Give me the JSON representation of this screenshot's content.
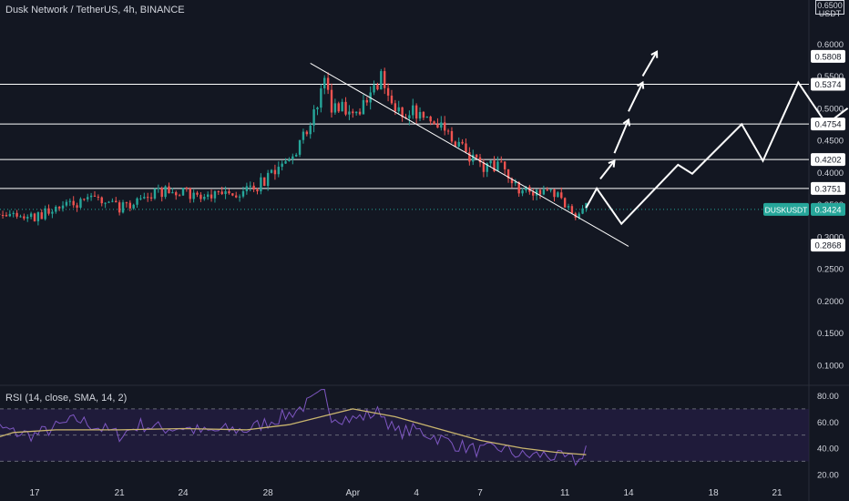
{
  "title": "Dusk Network / TetherUS, 4h, BINANCE",
  "rsi_title": "RSI (14, close, SMA, 14, 2)",
  "axis_unit": {
    "top": "0.6500",
    "bottom": "USDT"
  },
  "ticker_label": "DUSKUSDT",
  "colors": {
    "background": "#131722",
    "up": "#26a69a",
    "down": "#ef5350",
    "rsi_line": "#7e57c2",
    "rsi_ma": "#c9b56e",
    "rsi_band": "#2a1f4e",
    "annotation": "#ffffff",
    "axis_text": "#d1d4dc",
    "price_tag": "#26a69a"
  },
  "chart_data": [
    {
      "type": "candlestick",
      "title": "Dusk Network / TetherUS, 4h, BINANCE",
      "x_ticks": [
        "17",
        "21",
        "24",
        "28",
        "Apr",
        "4",
        "7",
        "11",
        "14",
        "18",
        "21"
      ],
      "y_ticks": [
        "0.6000",
        "0.5500",
        "0.5000",
        "0.4500",
        "0.4000",
        "0.3500",
        "0.3000",
        "0.2500",
        "0.2000",
        "0.1500",
        "0.1000"
      ],
      "ylim": [
        0.07,
        0.66
      ],
      "current_price": 0.3424,
      "horizontal_levels": [
        0.5374,
        0.4754,
        0.4202,
        0.3751
      ],
      "level_labels": [
        "0.5808",
        "0.5374",
        "0.4754",
        "0.4202",
        "0.3751",
        "0.3424",
        "0.2868"
      ],
      "trendline": {
        "from": [
          "2024-03-30",
          0.57
        ],
        "to": [
          "2024-04-14",
          0.285
        ]
      },
      "price_path": [
        [
          "2024-03-14 00:00",
          0.31
        ],
        [
          "2024-03-15 00:00",
          0.34
        ],
        [
          "2024-03-16 00:00",
          0.335
        ],
        [
          "2024-03-17 00:00",
          0.33
        ],
        [
          "2024-03-18 00:00",
          0.345
        ],
        [
          "2024-03-19 00:00",
          0.35
        ],
        [
          "2024-03-20 00:00",
          0.36
        ],
        [
          "2024-03-21 00:00",
          0.345
        ],
        [
          "2024-03-22 00:00",
          0.36
        ],
        [
          "2024-03-23 00:00",
          0.37
        ],
        [
          "2024-03-24 00:00",
          0.37
        ],
        [
          "2024-03-25 00:00",
          0.36
        ],
        [
          "2024-03-26 00:00",
          0.365
        ],
        [
          "2024-03-27 00:00",
          0.37
        ],
        [
          "2024-03-28 00:00",
          0.39
        ],
        [
          "2024-03-29 00:00",
          0.42
        ],
        [
          "2024-03-30 00:00",
          0.47
        ],
        [
          "2024-03-30 16:00",
          0.545
        ],
        [
          "2024-03-31 00:00",
          0.505
        ],
        [
          "2024-04-01 00:00",
          0.5
        ],
        [
          "2024-04-01 16:00",
          0.505
        ],
        [
          "2024-04-02 08:00",
          0.545
        ],
        [
          "2024-04-03 00:00",
          0.49
        ],
        [
          "2024-04-04 00:00",
          0.495
        ],
        [
          "2024-04-05 00:00",
          0.48
        ],
        [
          "2024-04-06 00:00",
          0.44
        ],
        [
          "2024-04-07 00:00",
          0.41
        ],
        [
          "2024-04-08 00:00",
          0.41
        ],
        [
          "2024-04-09 00:00",
          0.37
        ],
        [
          "2024-04-10 00:00",
          0.365
        ],
        [
          "2024-04-10 16:00",
          0.37
        ],
        [
          "2024-04-11 08:00",
          0.33
        ],
        [
          "2024-04-12 00:00",
          0.345
        ]
      ],
      "projection": [
        [
          "2024-04-12 00:00",
          0.345
        ],
        [
          "2024-04-12 12:00",
          0.375
        ],
        [
          "2024-04-13 16:00",
          0.32
        ],
        [
          "2024-04-16 08:00",
          0.412
        ],
        [
          "2024-04-17 00:00",
          0.398
        ],
        [
          "2024-04-19 08:00",
          0.475
        ],
        [
          "2024-04-20 08:00",
          0.418
        ],
        [
          "2024-04-22 00:00",
          0.54
        ],
        [
          "2024-04-23 08:00",
          0.475
        ],
        [
          "2024-04-24 08:00",
          0.5
        ]
      ],
      "breakout_arrows": [
        [
          [
            "2024-04-12 16:00",
            0.39
          ],
          [
            "2024-04-13 08:00",
            0.418
          ]
        ],
        [
          [
            "2024-04-13 08:00",
            0.43
          ],
          [
            "2024-04-14 00:00",
            0.482
          ]
        ],
        [
          [
            "2024-04-14 00:00",
            0.495
          ],
          [
            "2024-04-14 16:00",
            0.54
          ]
        ],
        [
          [
            "2024-04-14 16:00",
            0.55
          ],
          [
            "2024-04-15 08:00",
            0.588
          ]
        ]
      ]
    },
    {
      "type": "line",
      "title": "RSI (14, close, SMA, 14, 2)",
      "y_ticks": [
        "80.00",
        "60.00",
        "40.00",
        "20.00"
      ],
      "ylim": [
        15,
        88
      ],
      "band": [
        30,
        70
      ],
      "midline": 50,
      "series": [
        {
          "name": "RSI",
          "points": [
            [
              "2024-03-14 00:00",
              40
            ],
            [
              "2024-03-15 00:00",
              58
            ],
            [
              "2024-03-16 00:00",
              52
            ],
            [
              "2024-03-17 00:00",
              50
            ],
            [
              "2024-03-18 00:00",
              56
            ],
            [
              "2024-03-19 00:00",
              62
            ],
            [
              "2024-03-20 00:00",
              56
            ],
            [
              "2024-03-21 00:00",
              50
            ],
            [
              "2024-03-22 00:00",
              58
            ],
            [
              "2024-03-23 00:00",
              55
            ],
            [
              "2024-03-24 00:00",
              56
            ],
            [
              "2024-03-25 00:00",
              52
            ],
            [
              "2024-03-26 00:00",
              54
            ],
            [
              "2024-03-27 00:00",
              54
            ],
            [
              "2024-03-28 00:00",
              60
            ],
            [
              "2024-03-29 00:00",
              66
            ],
            [
              "2024-03-30 00:00",
              75
            ],
            [
              "2024-03-30 16:00",
              82
            ],
            [
              "2024-03-31 00:00",
              65
            ],
            [
              "2024-04-01 00:00",
              62
            ],
            [
              "2024-04-02 08:00",
              68
            ],
            [
              "2024-04-03 00:00",
              52
            ],
            [
              "2024-04-04 00:00",
              54
            ],
            [
              "2024-04-05 00:00",
              48
            ],
            [
              "2024-04-06 00:00",
              42
            ],
            [
              "2024-04-07 00:00",
              38
            ],
            [
              "2024-04-08 00:00",
              40
            ],
            [
              "2024-04-09 00:00",
              34
            ],
            [
              "2024-04-10 00:00",
              35
            ],
            [
              "2024-04-11 00:00",
              32
            ],
            [
              "2024-04-11 16:00",
              30
            ],
            [
              "2024-04-12 00:00",
              42
            ]
          ]
        },
        {
          "name": "RSI-based MA",
          "points": [
            [
              "2024-03-14 00:00",
              42
            ],
            [
              "2024-03-16 00:00",
              52
            ],
            [
              "2024-03-18 00:00",
              54
            ],
            [
              "2024-03-21 00:00",
              54
            ],
            [
              "2024-03-24 00:00",
              55
            ],
            [
              "2024-03-27 00:00",
              54
            ],
            [
              "2024-03-29 00:00",
              58
            ],
            [
              "2024-03-31 00:00",
              66
            ],
            [
              "2024-04-01 00:00",
              70
            ],
            [
              "2024-04-03 00:00",
              64
            ],
            [
              "2024-04-05 00:00",
              55
            ],
            [
              "2024-04-07 00:00",
              46
            ],
            [
              "2024-04-09 00:00",
              40
            ],
            [
              "2024-04-10 12:00",
              37
            ],
            [
              "2024-04-12 00:00",
              35
            ]
          ]
        }
      ]
    }
  ]
}
